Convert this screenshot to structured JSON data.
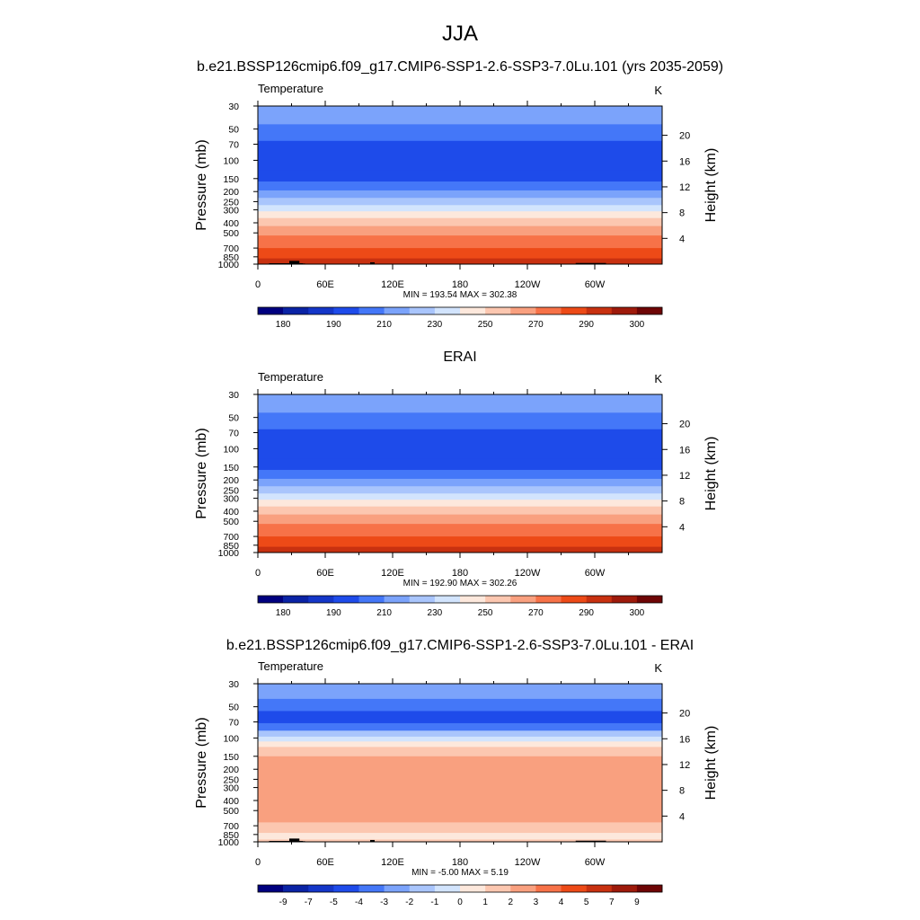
{
  "figure": {
    "title": "JJA",
    "subtitle_top": "b.e21.BSSP126cmip6.f09_g17.CMIP6-SSP1-2.6-SSP3-7.0Lu.101 (yrs 2035-2059)",
    "subtitle_mid": "ERAI",
    "subtitle_bottom": "b.e21.BSSP126cmip6.f09_g17.CMIP6-SSP1-2.6-SSP3-7.0Lu.101 - ERAI"
  },
  "colors": {
    "palette": [
      "#00007f",
      "#0a23a5",
      "#1436c8",
      "#1e4bea",
      "#4477f8",
      "#7ba3fb",
      "#a9c5fc",
      "#d2e4fd",
      "#fde8dc",
      "#fcc7b0",
      "#f9a07f",
      "#f77248",
      "#ed4a17",
      "#c83110",
      "#9e1a0b",
      "#6e0505"
    ],
    "terrain": "#000000"
  },
  "chart_data": [
    {
      "type": "heatmap",
      "panel": "model",
      "left_label": "Temperature",
      "right_label": "K",
      "ylabel": "Pressure (mb)",
      "y2label": "Height (km)",
      "x_ticks": [
        "0",
        "60E",
        "120E",
        "180",
        "120W",
        "60W"
      ],
      "x_tick_positions_deg": [
        0,
        60,
        120,
        180,
        240,
        300
      ],
      "xlim": [
        0,
        360
      ],
      "y_ticks": [
        "30",
        "50",
        "70",
        "100",
        "150",
        "200",
        "250",
        "300",
        "400",
        "500",
        "700",
        "850",
        "1000"
      ],
      "ylim": [
        1000,
        30
      ],
      "y_scale": "log",
      "y2_ticks": [
        "4",
        "8",
        "12",
        "16",
        "20"
      ],
      "minmax": "MIN = 193.54  MAX = 302.38",
      "colorbar_labels": [
        "180",
        "190",
        "210",
        "230",
        "250",
        "270",
        "290",
        "300"
      ],
      "level_profile": [
        {
          "p": 30,
          "level": 5
        },
        {
          "p": 45,
          "level": 4
        },
        {
          "p": 65,
          "level": 3
        },
        {
          "p": 125,
          "level": 3
        },
        {
          "p": 160,
          "level": 4
        },
        {
          "p": 195,
          "level": 5
        },
        {
          "p": 230,
          "level": 6
        },
        {
          "p": 270,
          "level": 7
        },
        {
          "p": 310,
          "level": 8
        },
        {
          "p": 360,
          "level": 9
        },
        {
          "p": 430,
          "level": 10
        },
        {
          "p": 530,
          "level": 11
        },
        {
          "p": 700,
          "level": 12
        },
        {
          "p": 880,
          "level": 13
        },
        {
          "p": 1000,
          "level": 14
        }
      ],
      "terrain_blocks": [
        {
          "lon0": 10,
          "lon1": 40,
          "p": 980
        },
        {
          "lon0": 28,
          "lon1": 37,
          "p": 930
        },
        {
          "lon0": 37,
          "lon1": 42,
          "p": 985
        },
        {
          "lon0": 100,
          "lon1": 104,
          "p": 960
        },
        {
          "lon0": 283,
          "lon1": 310,
          "p": 975
        }
      ]
    },
    {
      "type": "heatmap",
      "panel": "obs",
      "left_label": "Temperature",
      "right_label": "K",
      "ylabel": "Pressure (mb)",
      "y2label": "Height (km)",
      "x_ticks": [
        "0",
        "60E",
        "120E",
        "180",
        "120W",
        "60W"
      ],
      "x_tick_positions_deg": [
        0,
        60,
        120,
        180,
        240,
        300
      ],
      "xlim": [
        0,
        360
      ],
      "y_ticks": [
        "30",
        "50",
        "70",
        "100",
        "150",
        "200",
        "250",
        "300",
        "400",
        "500",
        "700",
        "850",
        "1000"
      ],
      "ylim": [
        1000,
        30
      ],
      "y_scale": "log",
      "y2_ticks": [
        "4",
        "8",
        "12",
        "16",
        "20"
      ],
      "minmax": "MIN = 192.90  MAX = 302.26",
      "colorbar_labels": [
        "180",
        "190",
        "210",
        "230",
        "250",
        "270",
        "290",
        "300"
      ],
      "level_profile": [
        {
          "p": 30,
          "level": 5
        },
        {
          "p": 45,
          "level": 4
        },
        {
          "p": 65,
          "level": 3
        },
        {
          "p": 125,
          "level": 3
        },
        {
          "p": 160,
          "level": 4
        },
        {
          "p": 195,
          "level": 5
        },
        {
          "p": 230,
          "level": 6
        },
        {
          "p": 270,
          "level": 7
        },
        {
          "p": 310,
          "level": 8
        },
        {
          "p": 360,
          "level": 9
        },
        {
          "p": 430,
          "level": 10
        },
        {
          "p": 530,
          "level": 11
        },
        {
          "p": 700,
          "level": 12
        },
        {
          "p": 880,
          "level": 13
        },
        {
          "p": 1000,
          "level": 14
        }
      ],
      "terrain_blocks": []
    },
    {
      "type": "heatmap",
      "panel": "diff",
      "left_label": "Temperature",
      "right_label": "K",
      "ylabel": "Pressure (mb)",
      "y2label": "Height (km)",
      "x_ticks": [
        "0",
        "60E",
        "120E",
        "180",
        "120W",
        "60W"
      ],
      "x_tick_positions_deg": [
        0,
        60,
        120,
        180,
        240,
        300
      ],
      "xlim": [
        0,
        360
      ],
      "y_ticks": [
        "30",
        "50",
        "70",
        "100",
        "150",
        "200",
        "250",
        "300",
        "400",
        "500",
        "700",
        "850",
        "1000"
      ],
      "ylim": [
        1000,
        30
      ],
      "y_scale": "log",
      "y2_ticks": [
        "4",
        "8",
        "12",
        "16",
        "20"
      ],
      "minmax": "MIN =  -5.00  MAX =   5.19",
      "colorbar_labels": [
        "-9",
        "-7",
        "-5",
        "-4",
        "-3",
        "-2",
        "-1",
        "0",
        "1",
        "2",
        "3",
        "4",
        "5",
        "7",
        "9"
      ],
      "level_profile": [
        {
          "p": 30,
          "level": 5
        },
        {
          "p": 42,
          "level": 4
        },
        {
          "p": 55,
          "level": 3
        },
        {
          "p": 72,
          "level": 4
        },
        {
          "p": 85,
          "level": 6
        },
        {
          "p": 97,
          "level": 7
        },
        {
          "p": 108,
          "level": 8
        },
        {
          "p": 122,
          "level": 9
        },
        {
          "p": 150,
          "level": 10
        },
        {
          "p": 520,
          "level": 10
        },
        {
          "p": 650,
          "level": 9
        },
        {
          "p": 820,
          "level": 8
        },
        {
          "p": 950,
          "level": 9
        },
        {
          "p": 1000,
          "level": 9
        }
      ],
      "terrain_blocks": [
        {
          "lon0": 10,
          "lon1": 40,
          "p": 980
        },
        {
          "lon0": 28,
          "lon1": 37,
          "p": 930
        },
        {
          "lon0": 37,
          "lon1": 42,
          "p": 985
        },
        {
          "lon0": 100,
          "lon1": 104,
          "p": 960
        },
        {
          "lon0": 283,
          "lon1": 310,
          "p": 975
        }
      ]
    }
  ]
}
